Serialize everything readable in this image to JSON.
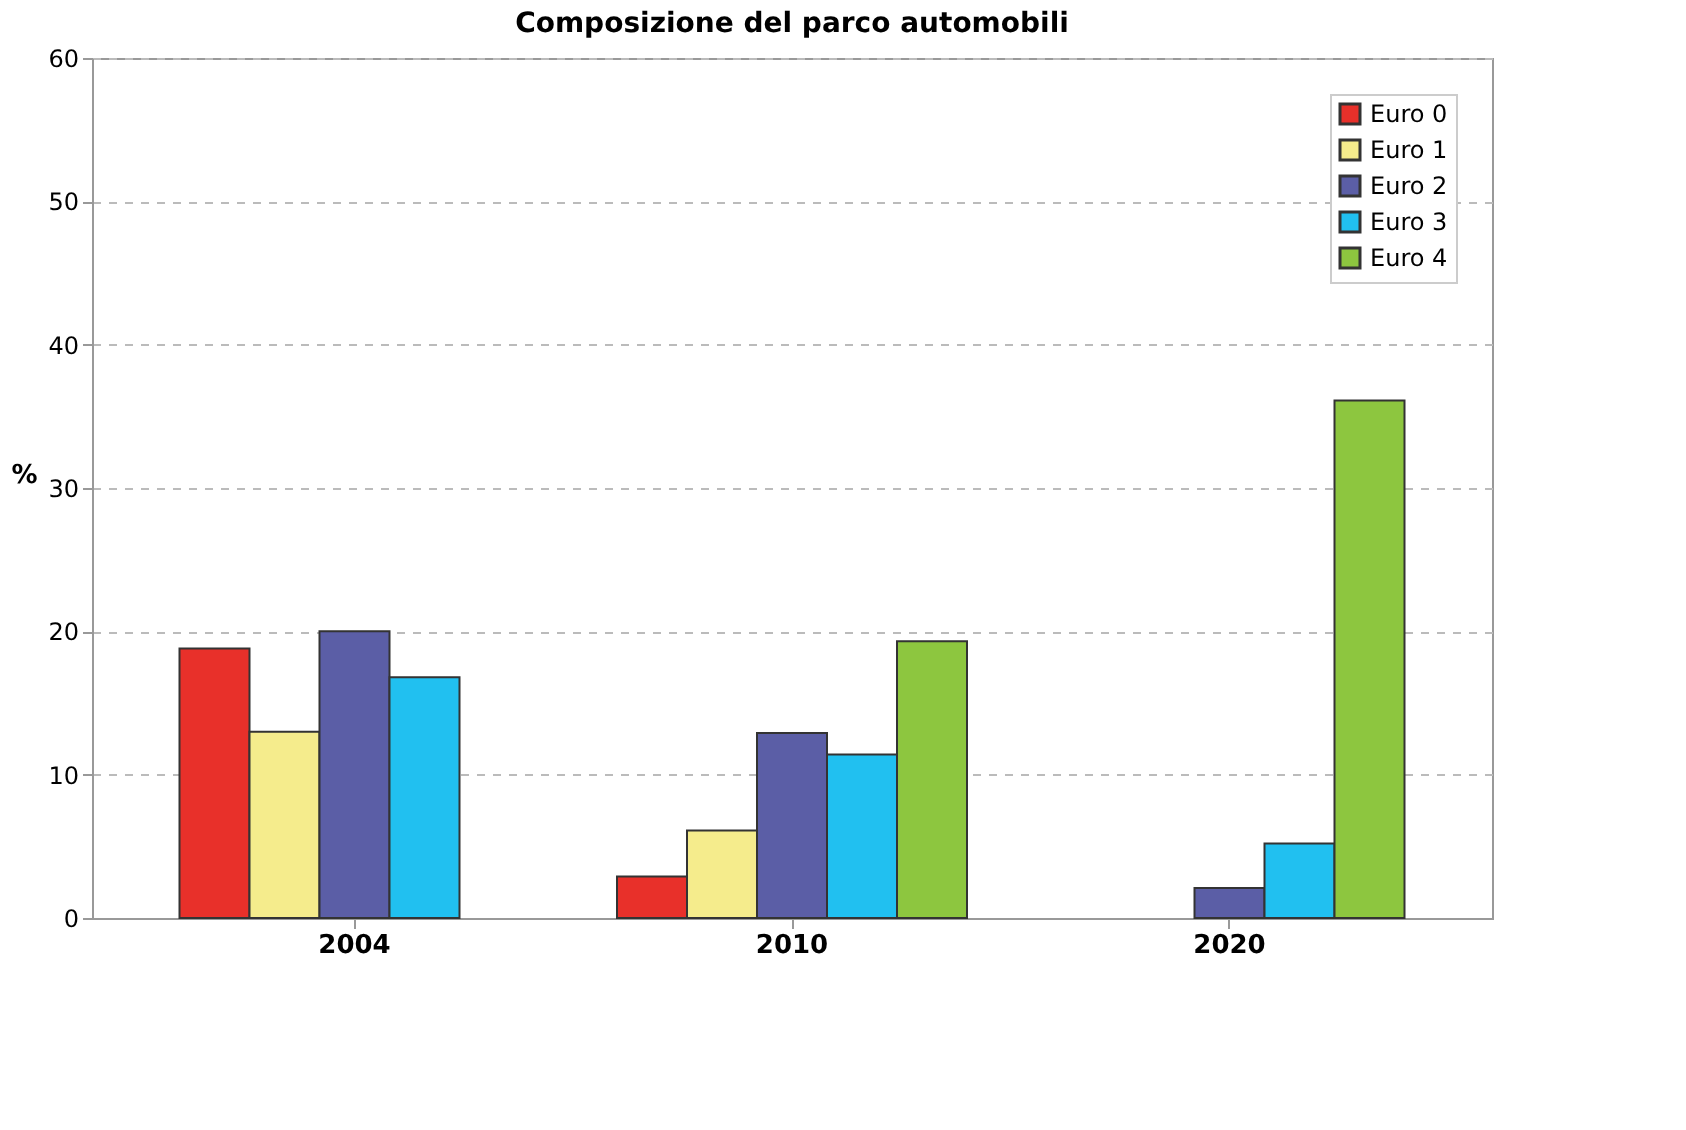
{
  "chart_data": {
    "type": "bar",
    "title": "Composizione del parco automobili",
    "ylabel": "%",
    "categories": [
      "2004",
      "2010",
      "2020"
    ],
    "series": [
      {
        "name": "Euro 0",
        "color": "#e8302a",
        "values": [
          18.8,
          2.9,
          null
        ]
      },
      {
        "name": "Euro 1",
        "color": "#f5ec8c",
        "values": [
          13,
          6.1,
          null
        ]
      },
      {
        "name": "Euro 2",
        "color": "#5b5ea6",
        "values": [
          20,
          12.9,
          2.1
        ]
      },
      {
        "name": "Euro 3",
        "color": "#21c0f0",
        "values": [
          16.8,
          11.4,
          5.2
        ]
      },
      {
        "name": "Euro 4",
        "color": "#8dc63f",
        "values": [
          null,
          19.3,
          36.1
        ]
      }
    ],
    "ylim": [
      0,
      60
    ],
    "yticks": [
      0,
      10,
      20,
      30,
      40,
      50,
      60
    ],
    "grid": "y",
    "legend": "top right"
  }
}
